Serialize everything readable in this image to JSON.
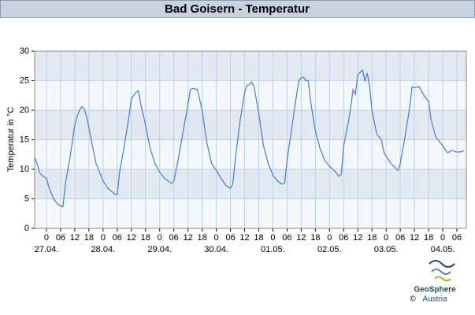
{
  "chart_data": {
    "type": "line",
    "title": "Bad Goisern - Temperatur",
    "ylabel": "Temperatur in °C",
    "color": "#4a7bd0",
    "grid": true,
    "xlim": [
      -5,
      178
    ],
    "ylim": [
      0,
      30
    ],
    "yticks": [
      0,
      5,
      10,
      15,
      20,
      25,
      30
    ],
    "xticks": [
      0,
      {
        "value": 6,
        "label": "06"
      },
      {
        "value": 12,
        "label": "12"
      },
      {
        "value": 18,
        "label": "18"
      },
      {
        "value": 24,
        "label": "0"
      },
      {
        "value": 30,
        "label": "06"
      },
      {
        "value": 36,
        "label": "12"
      },
      {
        "value": 42,
        "label": "18"
      },
      {
        "value": 48,
        "label": "0"
      },
      {
        "value": 54,
        "label": "06"
      },
      {
        "value": 60,
        "label": "12"
      },
      {
        "value": 66,
        "label": "18"
      },
      {
        "value": 72,
        "label": "0"
      },
      {
        "value": 78,
        "label": "06"
      },
      {
        "value": 84,
        "label": "12"
      },
      {
        "value": 90,
        "label": "18"
      },
      {
        "value": 96,
        "label": "0"
      },
      {
        "value": 102,
        "label": "06"
      },
      {
        "value": 108,
        "label": "12"
      },
      {
        "value": 114,
        "label": "18"
      },
      {
        "value": 120,
        "label": "0"
      },
      {
        "value": 126,
        "label": "06"
      },
      {
        "value": 132,
        "label": "12"
      },
      {
        "value": 138,
        "label": "18"
      },
      {
        "value": 144,
        "label": "0"
      },
      {
        "value": 150,
        "label": "06"
      },
      {
        "value": 156,
        "label": "12"
      },
      {
        "value": 162,
        "label": "18"
      },
      {
        "value": 168,
        "label": "0"
      },
      {
        "value": 174,
        "label": "06"
      }
    ],
    "date_labels": [
      {
        "value": 0,
        "label": "27.04."
      },
      {
        "value": 24,
        "label": "28.04."
      },
      {
        "value": 48,
        "label": "29.04."
      },
      {
        "value": 72,
        "label": "30.04."
      },
      {
        "value": 96,
        "label": "01.05."
      },
      {
        "value": 120,
        "label": "02.05."
      },
      {
        "value": 144,
        "label": "03.05."
      },
      {
        "value": 168,
        "label": "04.05."
      }
    ],
    "x": [
      -5,
      -4,
      -3,
      -2,
      -1,
      0,
      1,
      3,
      5,
      6,
      7,
      8,
      10,
      12,
      13,
      14,
      15,
      16,
      17,
      19,
      21,
      23,
      24,
      26,
      29,
      30,
      31,
      33,
      35,
      36,
      38,
      39,
      40,
      42,
      44,
      46,
      48,
      50,
      53,
      54,
      56,
      58,
      60,
      61,
      62,
      64,
      66,
      68,
      70,
      72,
      74,
      76,
      78,
      79,
      80,
      82,
      84,
      85,
      86,
      87,
      88,
      90,
      92,
      94,
      96,
      98,
      100,
      101,
      102,
      104,
      106,
      107,
      108,
      109,
      110,
      111,
      112,
      114,
      116,
      118,
      120,
      122,
      124,
      125,
      126,
      128,
      129,
      130,
      131,
      132,
      134,
      135,
      136,
      137,
      138,
      140,
      142,
      143,
      144,
      146,
      148,
      149,
      150,
      152,
      154,
      155,
      156,
      158,
      160,
      162,
      163,
      165,
      167,
      168,
      170,
      172,
      174,
      176,
      177
    ],
    "values": [
      12,
      11,
      9.5,
      9,
      8.7,
      8.5,
      7,
      5,
      4,
      3.8,
      3.7,
      7.5,
      12,
      17.5,
      19,
      20,
      20.6,
      20.3,
      19,
      15,
      11,
      9,
      8,
      6.8,
      5.8,
      5.7,
      9.5,
      14,
      19,
      22,
      23,
      23.3,
      21,
      17.5,
      13.5,
      11,
      9.5,
      8.5,
      7.6,
      8,
      12,
      16.5,
      21,
      23.5,
      23.7,
      23.5,
      20,
      14.5,
      11,
      9.8,
      8.5,
      7.3,
      6.8,
      7.5,
      11.5,
      18,
      23,
      24.2,
      24.3,
      24.8,
      24,
      19.5,
      14,
      11,
      9,
      8,
      7.5,
      7.7,
      11.5,
      17,
      22.5,
      25,
      25.5,
      25.6,
      25,
      25,
      21.5,
      16.5,
      13.5,
      11.5,
      10.5,
      9.8,
      8.8,
      9.2,
      14,
      18,
      20.5,
      23.5,
      22.7,
      26,
      26.8,
      25,
      26.3,
      24,
      20,
      16,
      15,
      13,
      12.2,
      11,
      10.2,
      9.8,
      11,
      15.5,
      20.5,
      24,
      23.8,
      24,
      22.5,
      21.5,
      18.5,
      15.5,
      14.5,
      14,
      12.8,
      13.2,
      12.9,
      13,
      13.2
    ]
  },
  "logo": {
    "name": "GeoSphere",
    "sub": "Austria",
    "copyright": "©"
  }
}
